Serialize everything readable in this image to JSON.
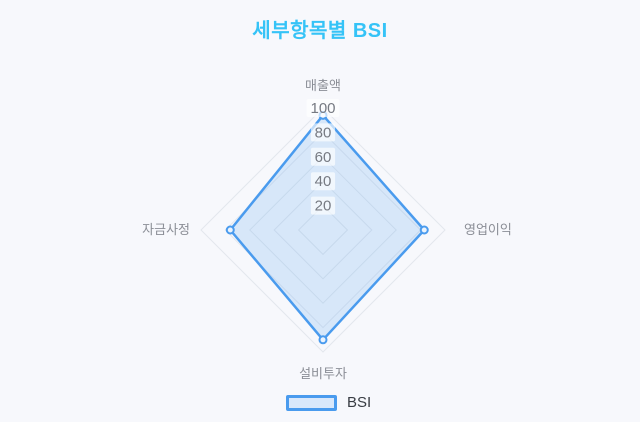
{
  "page": {
    "background": "#f7f8fc"
  },
  "chart_data": {
    "type": "radar",
    "title": "세부항목별 BSI",
    "categories": [
      "매출액",
      "영업이익",
      "설비투자",
      "자금사정"
    ],
    "series": [
      {
        "name": "BSI",
        "values": [
          94,
          83,
          90,
          76
        ]
      }
    ],
    "rlim": [
      0,
      100
    ],
    "ticks": [
      20,
      40,
      60,
      80,
      100
    ],
    "grid": "on",
    "angle_lines": "off",
    "legend_position": "bottom",
    "colors": {
      "title": "#35c3f7",
      "series_line": "#4a9bee",
      "series_fill": "#d9e8fb",
      "grid_line": "#e3e7ed",
      "tick_label": "#767a82",
      "category_label": "#8b8e96",
      "legend_label": "#383c43",
      "background": "#f7f8fc"
    }
  }
}
